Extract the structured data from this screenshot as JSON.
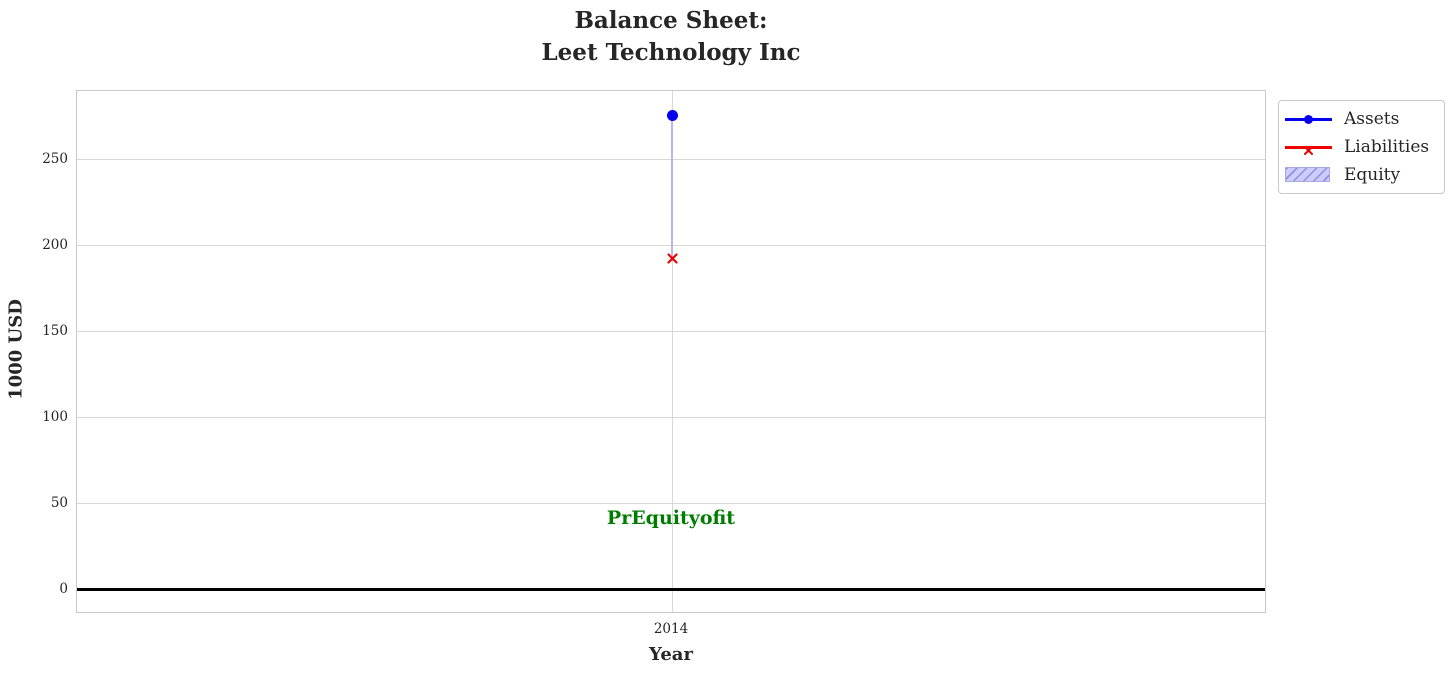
{
  "chart_data": {
    "type": "line",
    "title": "Balance Sheet:\nLeet Technology Inc",
    "xlabel": "Year",
    "ylabel": "1000 USD",
    "x": [
      2014
    ],
    "xticks": [
      "2014"
    ],
    "yticks": [
      0,
      50,
      100,
      150,
      200,
      250
    ],
    "ylim": [
      -14,
      290
    ],
    "grid": true,
    "zero_line_y": 0,
    "legend_position": "upper right, outside axes",
    "series": [
      {
        "name": "Assets",
        "type": "line",
        "marker": "circle",
        "color": "#0202ee",
        "values": [
          276
        ]
      },
      {
        "name": "Liabilities",
        "type": "line",
        "marker": "x",
        "color": "#ee0202",
        "values": [
          194
        ]
      },
      {
        "name": "Equity",
        "type": "fill_between",
        "between": [
          "Liabilities",
          "Assets"
        ],
        "color": "#ccccff",
        "hatch": "//",
        "values": [
          82
        ]
      }
    ],
    "annotation": {
      "text": "PrEquityofit",
      "x": 2014,
      "y": 41,
      "color": "#007d00"
    }
  },
  "colors": {
    "assets_blue": "#0202ee",
    "liabilities_red": "#ee0202",
    "equity_fill": "#ccccff",
    "equity_edge_segment": "#b7b7e8",
    "annotation_green": "#007d00",
    "grid": "#d8d8d8",
    "axis_border": "#c9c9c9",
    "text": "#262626",
    "zero_line": "#000000",
    "background": "#ffffff"
  }
}
